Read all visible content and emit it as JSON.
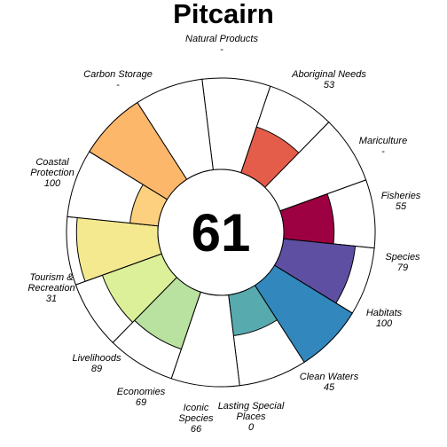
{
  "chart_data": {
    "type": "flower",
    "title": "Pitcairn",
    "overall_score": "61",
    "max_value": 100,
    "outline_color": "#000000",
    "petal_background": "#ffffff",
    "goals": [
      {
        "label": "Natural Products",
        "display_value": "-",
        "value": null,
        "color": null
      },
      {
        "label": "Aboriginal Needs",
        "display_value": "53",
        "value": 53,
        "color": "#E45C4A"
      },
      {
        "label": "Mariculture",
        "display_value": "-",
        "value": null,
        "color": null
      },
      {
        "label": "Fisheries",
        "display_value": "55",
        "value": 55,
        "color": "#9E0142"
      },
      {
        "label": "Species",
        "display_value": "79",
        "value": 79,
        "color": "#5E4FA2"
      },
      {
        "label": "Habitats",
        "display_value": "100",
        "value": 100,
        "color": "#3288BD"
      },
      {
        "label": "Clean Waters",
        "display_value": "45",
        "value": 45,
        "color": "#57AAAE"
      },
      {
        "label": "Lasting Special Places",
        "display_value": "0",
        "value": 0,
        "color": "#A4DBA4"
      },
      {
        "label": "Iconic Species",
        "display_value": "66",
        "value": 66,
        "color": "#B9E19F"
      },
      {
        "label": "Economies",
        "display_value": "69",
        "value": 69,
        "color": "#DCF09A"
      },
      {
        "label": "Livelihoods",
        "display_value": "89",
        "value": 89,
        "color": "#F5E990"
      },
      {
        "label": "Tourism & Recreation",
        "display_value": "31",
        "value": 31,
        "color": "#FDD07F"
      },
      {
        "label": "Coastal Protection",
        "display_value": "100",
        "value": 100,
        "color": "#FDB76B"
      },
      {
        "label": "Carbon Storage",
        "display_value": "-",
        "value": null,
        "color": null
      }
    ]
  }
}
